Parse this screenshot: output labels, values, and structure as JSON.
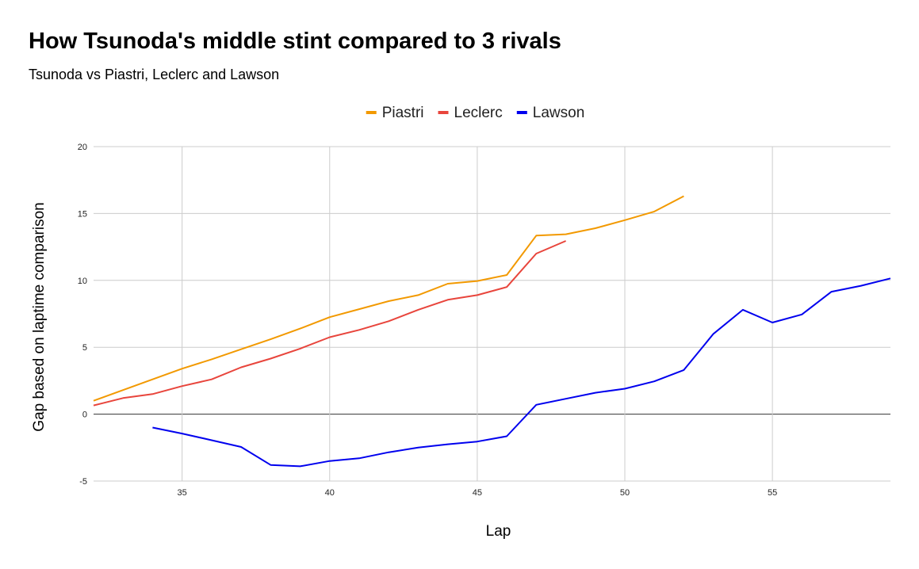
{
  "chart_data": {
    "type": "line",
    "title": "How Tsunoda's middle stint compared to 3 rivals",
    "subtitle": "Tsunoda vs Piastri, Leclerc and Lawson",
    "xlabel": "Lap",
    "ylabel": "Gap based on laptime comparison",
    "xlim": [
      32,
      59
    ],
    "ylim": [
      -5,
      20
    ],
    "x_ticks": [
      "35",
      "40",
      "45",
      "50",
      "55"
    ],
    "y_ticks": [
      "20",
      "15",
      "10",
      "5",
      "0",
      "-5"
    ],
    "grid": true,
    "legend_position": "top",
    "series": [
      {
        "name": "Piastri",
        "color": "#f29900",
        "points": [
          [
            32,
            1.0
          ],
          [
            33,
            1.8
          ],
          [
            34,
            2.6
          ],
          [
            35,
            3.4
          ],
          [
            36,
            4.1
          ],
          [
            37,
            4.85
          ],
          [
            38,
            5.6
          ],
          [
            39,
            6.4
          ],
          [
            40,
            7.25
          ],
          [
            41,
            7.85
          ],
          [
            42,
            8.45
          ],
          [
            43,
            8.9
          ],
          [
            44,
            9.75
          ],
          [
            45,
            9.95
          ],
          [
            46,
            10.4
          ],
          [
            47,
            13.35
          ],
          [
            48,
            13.45
          ],
          [
            49,
            13.9
          ],
          [
            50,
            14.5
          ],
          [
            51,
            15.15
          ],
          [
            52,
            16.3
          ]
        ]
      },
      {
        "name": "Leclerc",
        "color": "#e8453c",
        "points": [
          [
            32,
            0.65
          ],
          [
            33,
            1.2
          ],
          [
            34,
            1.5
          ],
          [
            35,
            2.1
          ],
          [
            36,
            2.6
          ],
          [
            37,
            3.5
          ],
          [
            38,
            4.15
          ],
          [
            39,
            4.9
          ],
          [
            40,
            5.75
          ],
          [
            41,
            6.3
          ],
          [
            42,
            6.95
          ],
          [
            43,
            7.8
          ],
          [
            44,
            8.55
          ],
          [
            45,
            8.9
          ],
          [
            46,
            9.5
          ],
          [
            47,
            12.0
          ],
          [
            48,
            12.95
          ]
        ]
      },
      {
        "name": "Lawson",
        "color": "#0000ee",
        "points": [
          [
            34,
            -1.0
          ],
          [
            35,
            -1.45
          ],
          [
            36,
            -1.95
          ],
          [
            37,
            -2.45
          ],
          [
            38,
            -3.8
          ],
          [
            39,
            -3.9
          ],
          [
            40,
            -3.5
          ],
          [
            41,
            -3.3
          ],
          [
            42,
            -2.85
          ],
          [
            43,
            -2.5
          ],
          [
            44,
            -2.25
          ],
          [
            45,
            -2.05
          ],
          [
            46,
            -1.65
          ],
          [
            47,
            0.7
          ],
          [
            48,
            1.15
          ],
          [
            49,
            1.6
          ],
          [
            50,
            1.9
          ],
          [
            51,
            2.45
          ],
          [
            52,
            3.3
          ],
          [
            53,
            6.0
          ],
          [
            54,
            7.8
          ],
          [
            55,
            6.85
          ],
          [
            56,
            7.45
          ],
          [
            57,
            9.15
          ],
          [
            58,
            9.6
          ],
          [
            59,
            10.15
          ]
        ]
      }
    ]
  }
}
